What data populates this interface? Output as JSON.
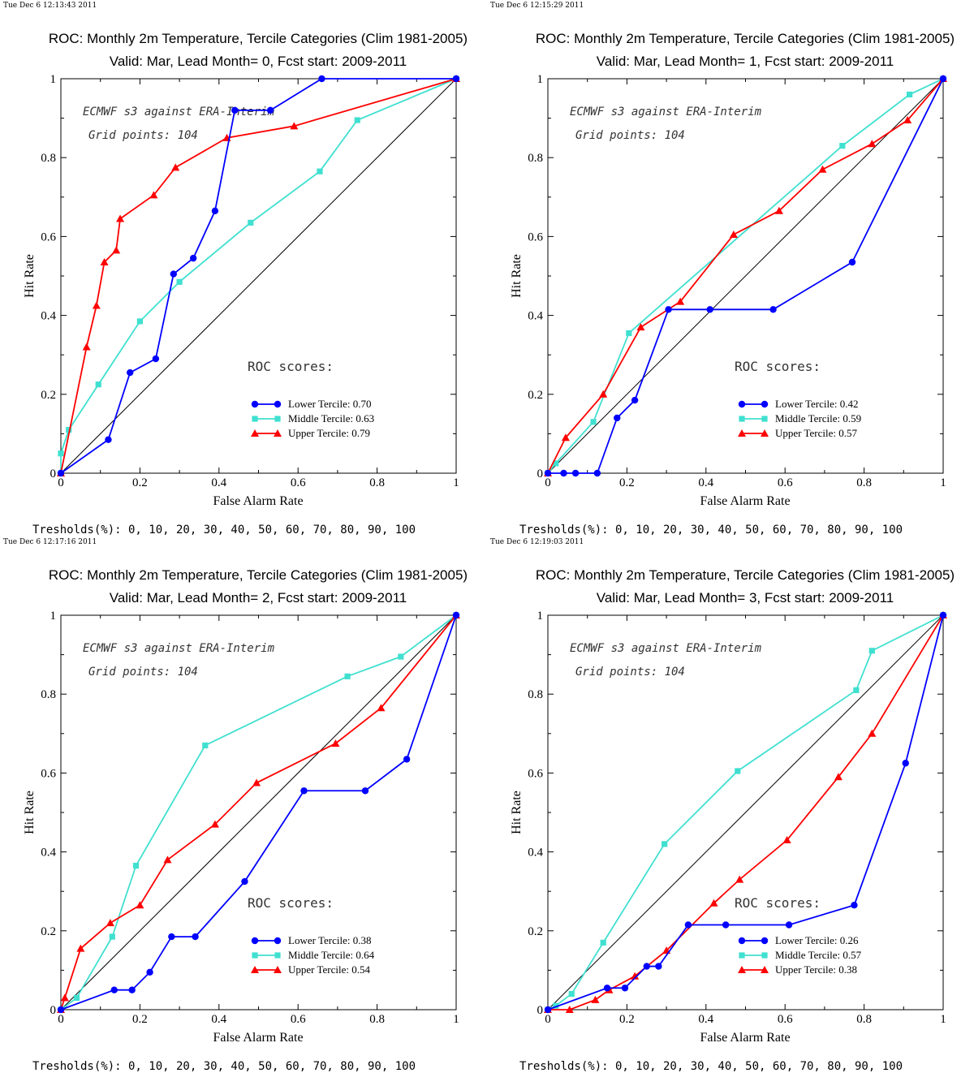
{
  "colors": {
    "lower": "#0000ff",
    "middle": "#40e0d0",
    "upper": "#ff0000",
    "diagonal": "#000000"
  },
  "chart_data": [
    {
      "type": "line",
      "timestamp": "Tue Dec  6 12:13:43 2011",
      "title": "ROC: Monthly 2m Temperature, Tercile Categories (Clim 1981-2005)",
      "subtitle": "Valid: Mar, Lead Month= 0, Fcst start: 2009-2011",
      "xlabel": "False Alarm Rate",
      "ylabel": "Hit Rate",
      "xlim": [
        0,
        1
      ],
      "ylim": [
        0,
        1
      ],
      "xticks": [
        "0",
        "0.2",
        "0.4",
        "0.6",
        "0.8",
        "1"
      ],
      "yticks": [
        "0",
        "0.2",
        "0.4",
        "0.6",
        "0.8",
        "1"
      ],
      "note1": "ECMWF s3 against ERA-Interim",
      "note2": "Grid points:  104",
      "scores_heading": "ROC scores:",
      "thresholds": "Tresholds(%): 0, 10, 20, 30, 40, 50, 60, 70, 80, 90, 100",
      "series": [
        {
          "name": "Lower Tercile: 0.70",
          "key": "lower",
          "x": [
            0,
            0.12,
            0.175,
            0.24,
            0.285,
            0.335,
            0.39,
            0.44,
            0.53,
            0.66,
            1
          ],
          "y": [
            0,
            0.085,
            0.255,
            0.29,
            0.505,
            0.545,
            0.665,
            0.92,
            0.92,
            1.0,
            1
          ]
        },
        {
          "name": "Middle Tercile: 0.63",
          "key": "middle",
          "x": [
            0,
            0,
            0.02,
            0.095,
            0.2,
            0.3,
            0.48,
            0.655,
            0.75,
            1
          ],
          "y": [
            0,
            0.05,
            0.11,
            0.225,
            0.385,
            0.485,
            0.635,
            0.765,
            0.895,
            1
          ]
        },
        {
          "name": "Upper Tercile: 0.79",
          "key": "upper",
          "x": [
            0,
            0.065,
            0.09,
            0.11,
            0.14,
            0.15,
            0.235,
            0.29,
            0.42,
            0.59,
            1
          ],
          "y": [
            0,
            0.32,
            0.425,
            0.535,
            0.565,
            0.645,
            0.705,
            0.775,
            0.85,
            0.88,
            1
          ]
        }
      ]
    },
    {
      "type": "line",
      "timestamp": "Tue Dec  6 12:15:29 2011",
      "title": "ROC: Monthly 2m Temperature, Tercile Categories (Clim 1981-2005)",
      "subtitle": "Valid: Mar, Lead Month= 1, Fcst start: 2009-2011",
      "xlabel": "False Alarm Rate",
      "ylabel": "Hit Rate",
      "xlim": [
        0,
        1
      ],
      "ylim": [
        0,
        1
      ],
      "xticks": [
        "0",
        "0.2",
        "0.4",
        "0.6",
        "0.8",
        "1"
      ],
      "yticks": [
        "0",
        "0.2",
        "0.4",
        "0.6",
        "0.8",
        "1"
      ],
      "note1": "ECMWF s3 against ERA-Interim",
      "note2": "Grid points:  104",
      "scores_heading": "ROC scores:",
      "thresholds": "Tresholds(%): 0, 10, 20, 30, 40, 50, 60, 70, 80, 90, 100",
      "series": [
        {
          "name": "Lower Tercile: 0.42",
          "key": "lower",
          "x": [
            0,
            0.04,
            0.07,
            0.125,
            0.175,
            0.22,
            0.305,
            0.41,
            0.57,
            0.77,
            1
          ],
          "y": [
            0,
            0,
            0,
            0,
            0.14,
            0.185,
            0.415,
            0.415,
            0.415,
            0.535,
            1
          ]
        },
        {
          "name": "Middle Tercile: 0.59",
          "key": "middle",
          "x": [
            0,
            0.02,
            0.115,
            0.205,
            0.745,
            0.915,
            1
          ],
          "y": [
            0,
            0.025,
            0.13,
            0.355,
            0.83,
            0.96,
            1
          ]
        },
        {
          "name": "Upper Tercile: 0.57",
          "key": "upper",
          "x": [
            0,
            0.045,
            0.14,
            0.235,
            0.335,
            0.47,
            0.585,
            0.695,
            0.82,
            0.91,
            1
          ],
          "y": [
            0,
            0.09,
            0.2,
            0.37,
            0.435,
            0.605,
            0.665,
            0.77,
            0.835,
            0.895,
            1
          ]
        }
      ]
    },
    {
      "type": "line",
      "timestamp": "Tue Dec  6 12:17:16 2011",
      "title": "ROC: Monthly 2m Temperature, Tercile Categories (Clim 1981-2005)",
      "subtitle": "Valid: Mar, Lead Month= 2, Fcst start: 2009-2011",
      "xlabel": "False Alarm Rate",
      "ylabel": "Hit Rate",
      "xlim": [
        0,
        1
      ],
      "ylim": [
        0,
        1
      ],
      "xticks": [
        "0",
        "0.2",
        "0.4",
        "0.6",
        "0.8",
        "1"
      ],
      "yticks": [
        "0",
        "0.2",
        "0.4",
        "0.6",
        "0.8",
        "1"
      ],
      "note1": "ECMWF s3 against ERA-Interim",
      "note2": "Grid points:  104",
      "scores_heading": "ROC scores:",
      "thresholds": "Tresholds(%): 0, 10, 20, 30, 40, 50, 60, 70, 80, 90, 100",
      "series": [
        {
          "name": "Lower Tercile: 0.38",
          "key": "lower",
          "x": [
            0,
            0.135,
            0.18,
            0.225,
            0.28,
            0.34,
            0.465,
            0.615,
            0.77,
            0.875,
            1
          ],
          "y": [
            0,
            0.05,
            0.05,
            0.095,
            0.185,
            0.185,
            0.325,
            0.555,
            0.555,
            0.635,
            1
          ]
        },
        {
          "name": "Middle Tercile: 0.64",
          "key": "middle",
          "x": [
            0,
            0.04,
            0.13,
            0.19,
            0.365,
            0.725,
            0.86,
            1
          ],
          "y": [
            0,
            0.03,
            0.185,
            0.365,
            0.67,
            0.845,
            0.895,
            1
          ]
        },
        {
          "name": "Upper Tercile: 0.54",
          "key": "upper",
          "x": [
            0,
            0.01,
            0.05,
            0.125,
            0.2,
            0.27,
            0.39,
            0.495,
            0.695,
            0.81,
            1
          ],
          "y": [
            0,
            0.03,
            0.155,
            0.22,
            0.265,
            0.38,
            0.47,
            0.575,
            0.675,
            0.765,
            1
          ]
        }
      ]
    },
    {
      "type": "line",
      "timestamp": "Tue Dec  6 12:19:03 2011",
      "title": "ROC: Monthly 2m Temperature, Tercile Categories (Clim 1981-2005)",
      "subtitle": "Valid: Mar, Lead Month= 3, Fcst start: 2009-2011",
      "xlabel": "False Alarm Rate",
      "ylabel": "Hit Rate",
      "xlim": [
        0,
        1
      ],
      "ylim": [
        0,
        1
      ],
      "xticks": [
        "0",
        "0.2",
        "0.4",
        "0.6",
        "0.8",
        "1"
      ],
      "yticks": [
        "0",
        "0.2",
        "0.4",
        "0.6",
        "0.8",
        "1"
      ],
      "note1": "ECMWF s3 against ERA-Interim",
      "note2": "Grid points:  104",
      "scores_heading": "ROC scores:",
      "thresholds": "Tresholds(%): 0, 10, 20, 30, 40, 50, 60, 70, 80, 90, 100",
      "series": [
        {
          "name": "Lower Tercile: 0.26",
          "key": "lower",
          "x": [
            0,
            0.15,
            0.195,
            0.25,
            0.28,
            0.355,
            0.45,
            0.61,
            0.775,
            0.905,
            1
          ],
          "y": [
            0,
            0.055,
            0.055,
            0.11,
            0.11,
            0.215,
            0.215,
            0.215,
            0.265,
            0.625,
            1
          ]
        },
        {
          "name": "Middle Tercile: 0.57",
          "key": "middle",
          "x": [
            0,
            0.02,
            0.06,
            0.14,
            0.295,
            0.48,
            0.78,
            0.82,
            1
          ],
          "y": [
            0,
            0.01,
            0.04,
            0.17,
            0.42,
            0.605,
            0.81,
            0.91,
            1
          ]
        },
        {
          "name": "Upper Tercile: 0.38",
          "key": "upper",
          "x": [
            0,
            0.055,
            0.12,
            0.155,
            0.22,
            0.3,
            0.42,
            0.485,
            0.605,
            0.735,
            0.82,
            1
          ],
          "y": [
            0,
            0.0,
            0.025,
            0.05,
            0.085,
            0.15,
            0.27,
            0.33,
            0.43,
            0.59,
            0.7,
            1
          ]
        }
      ]
    }
  ]
}
